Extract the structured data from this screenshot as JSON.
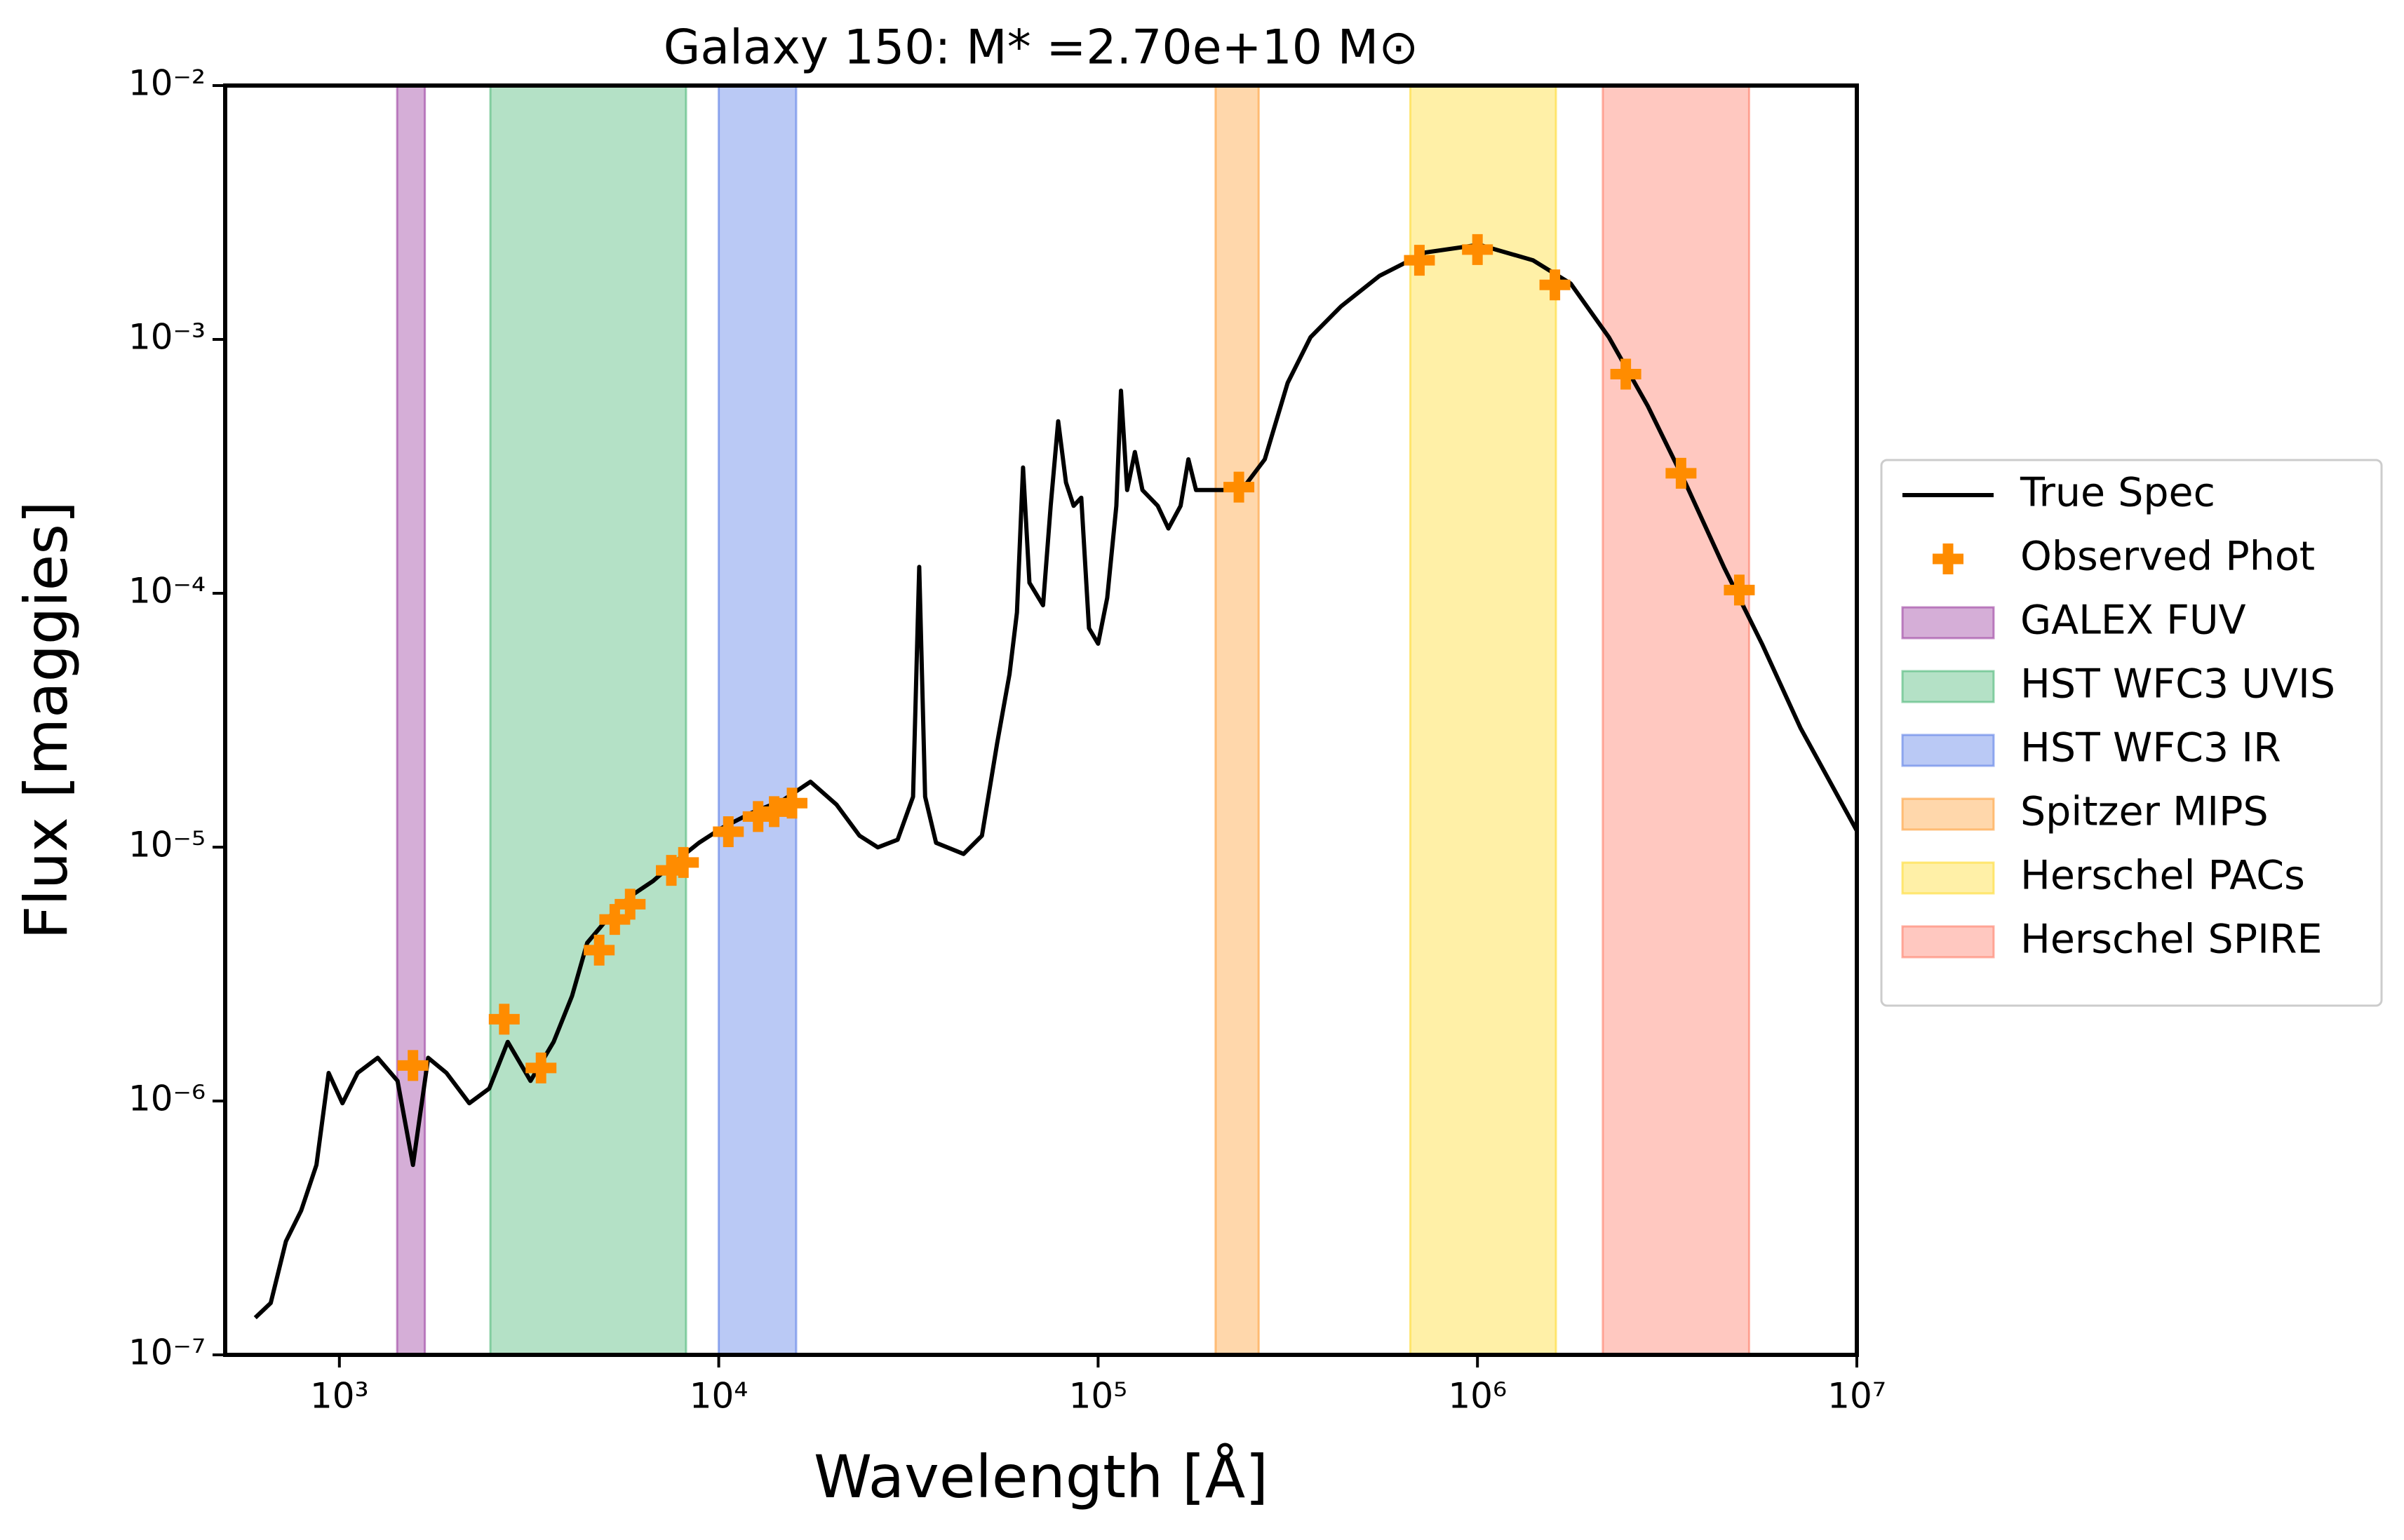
{
  "chart_data": {
    "type": "line",
    "title": "Galaxy 150: M* =2.70e+10 M⊙",
    "x_label": "Wavelength [Å]",
    "y_label": "Flux [maggies]",
    "x_log": true,
    "y_log": true,
    "xlim": [
      500,
      10000000
    ],
    "ylim": [
      1e-07,
      0.01
    ],
    "xticks": [
      {
        "value": 1000,
        "label": "10³"
      },
      {
        "value": 10000,
        "label": "10⁴"
      },
      {
        "value": 100000,
        "label": "10⁵"
      },
      {
        "value": 1000000,
        "label": "10⁶"
      },
      {
        "value": 10000000,
        "label": "10⁷"
      }
    ],
    "yticks": [
      {
        "value": 1e-07,
        "label": "10⁻⁷"
      },
      {
        "value": 1e-06,
        "label": "10⁻⁶"
      },
      {
        "value": 1e-05,
        "label": "10⁻⁵"
      },
      {
        "value": 0.0001,
        "label": "10⁻⁴"
      },
      {
        "value": 0.001,
        "label": "10⁻³"
      },
      {
        "value": 0.01,
        "label": "10⁻²"
      }
    ],
    "legend": "outside right",
    "series": [
      {
        "name": "True Spec",
        "type": "line",
        "color": "#000000",
        "x": [
          600,
          659,
          723,
          793,
          870,
          937,
          1019,
          1117,
          1262,
          1423,
          1563,
          1714,
          1916,
          2200,
          2483,
          2778,
          3191,
          3670,
          4104,
          4500,
          5080,
          5840,
          6710,
          7710,
          8870,
          10190,
          12270,
          14760,
          17450,
          20440,
          23490,
          26260,
          29620,
          32520,
          33760,
          35000,
          37400,
          44200,
          49400,
          54200,
          58400,
          61100,
          63400,
          65900,
          71600,
          75000,
          78500,
          82300,
          86200,
          90300,
          94600,
          100000,
          105700,
          111700,
          114900,
          119300,
          125000,
          130900,
          143600,
          153200,
          165000,
          173000,
          181200,
          202400,
          239000,
          275000,
          316000,
          363000,
          437000,
          552000,
          729000,
          1010000,
          1400000,
          1760000,
          2220000,
          2810000,
          3530000,
          4460000,
          5620000,
          7100000,
          10000000
        ],
        "values": [
          1.4e-07,
          1.6e-07,
          2.8e-07,
          3.7e-07,
          5.6e-07,
          1.29e-06,
          9.8e-07,
          1.29e-06,
          1.48e-06,
          1.2e-06,
          5.6e-07,
          1.48e-06,
          1.29e-06,
          9.8e-07,
          1.12e-06,
          1.71e-06,
          1.2e-06,
          1.71e-06,
          2.59e-06,
          4.2e-06,
          5.2e-06,
          6.4e-06,
          7.35e-06,
          8.8e-06,
          1.04e-05,
          1.19e-05,
          1.37e-05,
          1.53e-05,
          1.81e-05,
          1.47e-05,
          1.11e-05,
          9.98e-06,
          1.07e-05,
          1.58e-05,
          0.000127,
          1.58e-05,
          1.04e-05,
          9.4e-06,
          1.11e-05,
          2.57e-05,
          4.8e-05,
          8.4e-05,
          0.000313,
          0.00011,
          8.97e-05,
          0.000221,
          0.000476,
          0.000273,
          0.000221,
          0.000238,
          7.28e-05,
          6.33e-05,
          9.6e-05,
          0.000221,
          0.000628,
          0.000255,
          0.00036,
          0.000255,
          0.000221,
          0.00018,
          0.000221,
          0.000337,
          0.000255,
          0.000255,
          0.000255,
          0.000337,
          0.000674,
          0.00102,
          0.00135,
          0.00178,
          0.0022,
          0.00236,
          0.00205,
          0.00166,
          0.00102,
          0.000547,
          0.000273,
          0.000127,
          6.33e-05,
          2.95e-05,
          1.16e-05
        ]
      },
      {
        "name": "Observed Phot",
        "type": "scatter",
        "color": "#ff8c00",
        "x": [
          1563,
          2720,
          3400,
          4840,
          5320,
          5840,
          7500,
          8070,
          10600,
          12700,
          14000,
          15600,
          235000,
          703000,
          1000000,
          1600000,
          2460000,
          3440000,
          4900000
        ],
        "values": [
          1.38e-06,
          2.1e-06,
          1.35e-06,
          3.93e-06,
          5.19e-06,
          5.96e-06,
          8.1e-06,
          8.7e-06,
          1.15e-05,
          1.32e-05,
          1.38e-05,
          1.49e-05,
          0.000262,
          0.00205,
          0.00226,
          0.00164,
          0.00073,
          0.000297,
          0.000103
        ]
      }
    ],
    "bands": [
      {
        "name": "GALEX FUV",
        "color": "#9b3fa0",
        "xmin": 1420,
        "xmax": 1680
      },
      {
        "name": "HST WFC3 UVIS",
        "color": "#4cb878",
        "xmin": 2500,
        "xmax": 8200
      },
      {
        "name": "HST WFC3 IR",
        "color": "#5b7fe6",
        "xmin": 10000,
        "xmax": 16000
      },
      {
        "name": "Spitzer MIPS",
        "color": "#ff9f38",
        "xmin": 204000,
        "xmax": 265000
      },
      {
        "name": "Herschel PACs",
        "color": "#ffdb2e",
        "xmin": 665000,
        "xmax": 1610000
      },
      {
        "name": "Herschel SPIRE",
        "color": "#ff7d68",
        "xmin": 2140000,
        "xmax": 5200000
      }
    ]
  }
}
